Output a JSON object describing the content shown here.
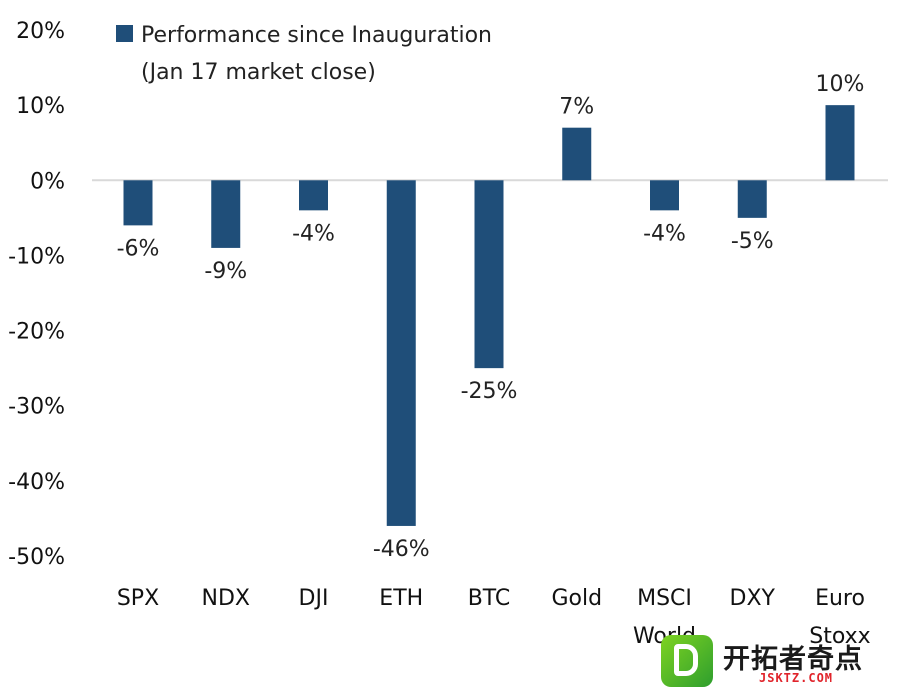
{
  "chart_data": {
    "type": "bar",
    "categories": [
      "SPX",
      "NDX",
      "DJI",
      "ETH",
      "BTC",
      "Gold",
      "MSCI World",
      "DXY",
      "Euro Stoxx"
    ],
    "series": [
      {
        "name": "Performance since Inauguration (Jan 17 market close)",
        "values": [
          -6,
          -9,
          -4,
          -46,
          -25,
          7,
          -4,
          -5,
          10
        ]
      }
    ],
    "data_labels": [
      "-6%",
      "-9%",
      "-4%",
      "-46%",
      "-25%",
      "7%",
      "-4%",
      "-5%",
      "10%"
    ],
    "legend_line1": "Performance since Inauguration",
    "legend_line2": "(Jan 17 market close)",
    "y_ticks": [
      20,
      10,
      0,
      -10,
      -20,
      -30,
      -40,
      -50
    ],
    "y_tick_labels": [
      "20%",
      "10%",
      "0%",
      "-10%",
      "-20%",
      "-30%",
      "-40%",
      "-50%"
    ],
    "ylim": [
      -50,
      20
    ],
    "bar_color": "#1f4e79",
    "grid": false,
    "legend_position": "top-left",
    "title": "",
    "xlabel": "",
    "ylabel": ""
  },
  "watermark": {
    "badge": "B",
    "main": "开拓者奇点",
    "sub": "JSKTZ.COM"
  }
}
